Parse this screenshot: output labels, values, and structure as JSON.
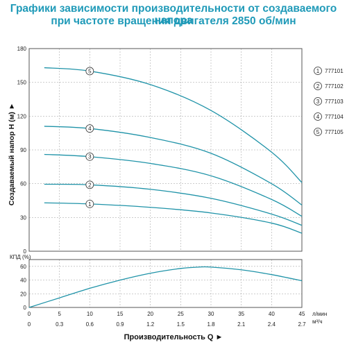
{
  "title_line1": "Графики зависимости производительности от создаваемого напора",
  "title_line2": "при частоте вращения двигателя 2850 об/мин",
  "colors": {
    "title": "#1f9ab8",
    "curve": "#1f93a8",
    "grid": "#9a9a9a",
    "frame": "#555555"
  },
  "chart_data": [
    {
      "type": "line",
      "ylabel": "Создаваемый напор Н (м)",
      "xlim": [
        0,
        45
      ],
      "ylim": [
        0,
        180
      ],
      "yticks": [
        0,
        30,
        60,
        90,
        120,
        150,
        180
      ],
      "legend_position": "right",
      "series": [
        {
          "name": "777101",
          "marker": "1",
          "marker_x": 10,
          "x": [
            2.5,
            10,
            20,
            30,
            40,
            45
          ],
          "y": [
            43,
            42,
            39,
            34,
            25,
            16
          ]
        },
        {
          "name": "777102",
          "marker": "2",
          "marker_x": 10,
          "x": [
            2.5,
            10,
            20,
            30,
            40,
            45
          ],
          "y": [
            59.5,
            59,
            55,
            47,
            33,
            23
          ]
        },
        {
          "name": "777103",
          "marker": "3",
          "marker_x": 10,
          "x": [
            2.5,
            10,
            20,
            30,
            40,
            45
          ],
          "y": [
            86,
            84,
            78,
            67,
            46,
            31
          ]
        },
        {
          "name": "777104",
          "marker": "4",
          "marker_x": 10,
          "x": [
            2.5,
            10,
            20,
            30,
            40,
            45
          ],
          "y": [
            111,
            109,
            101,
            87,
            60,
            41
          ]
        },
        {
          "name": "777105",
          "marker": "5",
          "marker_x": 10,
          "x": [
            2.5,
            10,
            20,
            30,
            40,
            45
          ],
          "y": [
            163,
            160,
            148,
            125,
            88,
            61
          ]
        }
      ]
    },
    {
      "type": "line",
      "ylabel": "КПД (%)",
      "xlim": [
        0,
        45
      ],
      "ylim": [
        0,
        70
      ],
      "yticks": [
        0,
        20,
        40,
        60
      ],
      "series": [
        {
          "x": [
            0,
            5,
            10,
            15,
            20,
            25,
            28,
            30,
            35,
            40,
            45
          ],
          "y": [
            0,
            14,
            28,
            40,
            50,
            57,
            59,
            59,
            55,
            48,
            39
          ]
        }
      ]
    }
  ],
  "x_axis": {
    "ticks_lmin": [
      "0",
      "5",
      "10",
      "15",
      "20",
      "25",
      "30",
      "35",
      "40",
      "45"
    ],
    "ticks_m3h": [
      "0",
      "0.3",
      "0.6",
      "0.9",
      "1.2",
      "1.5",
      "1.8",
      "2.1",
      "2.4",
      "2.7"
    ],
    "unit_lmin": "л/мин",
    "unit_m3h": "м³/ч",
    "label": "Производительность Q ►"
  }
}
